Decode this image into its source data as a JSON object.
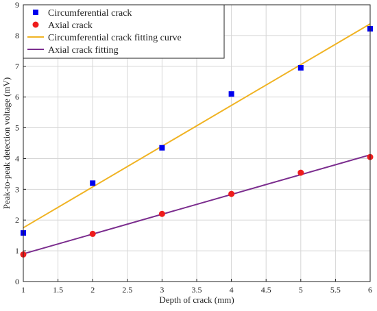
{
  "chart_data": {
    "type": "scatter",
    "title": "",
    "xlabel": "Depth of crack (mm)",
    "ylabel": "Peak-to-peak detection voltage (mV)",
    "xlim": [
      1,
      6
    ],
    "ylim": [
      0,
      9
    ],
    "xticks": [
      1,
      1.5,
      2,
      2.5,
      3,
      3.5,
      4,
      4.5,
      5,
      5.5,
      6
    ],
    "xtick_labels": [
      "1",
      "1.5",
      "2",
      "2.5",
      "3",
      "3.5",
      "4",
      "4.5",
      "5",
      "5.5",
      "6"
    ],
    "yticks": [
      0,
      1,
      2,
      3,
      4,
      5,
      6,
      7,
      8,
      9
    ],
    "ytick_labels": [
      "0",
      "1",
      "2",
      "3",
      "4",
      "5",
      "6",
      "7",
      "8",
      "9"
    ],
    "grid": true,
    "legend_position": "top-left",
    "series": [
      {
        "name": "Circumferential crack",
        "kind": "markers",
        "marker": "square",
        "color": "#0000ee",
        "x": [
          1,
          2,
          3,
          4,
          5,
          6
        ],
        "y": [
          1.58,
          3.2,
          4.35,
          6.1,
          6.95,
          8.22
        ]
      },
      {
        "name": "Axial crack",
        "kind": "markers",
        "marker": "circle",
        "color": "#ee1c1c",
        "x": [
          1,
          2,
          3,
          4,
          5,
          6
        ],
        "y": [
          0.88,
          1.55,
          2.2,
          2.85,
          3.54,
          4.05
        ]
      },
      {
        "name": "Circumferential crack fitting curve",
        "kind": "line",
        "color": "#f0b323",
        "x": [
          1,
          6
        ],
        "y": [
          1.75,
          8.38
        ]
      },
      {
        "name": "Axial crack fitting",
        "kind": "line",
        "color": "#7b2d8e",
        "x": [
          1,
          6
        ],
        "y": [
          0.9,
          4.12
        ]
      }
    ]
  }
}
